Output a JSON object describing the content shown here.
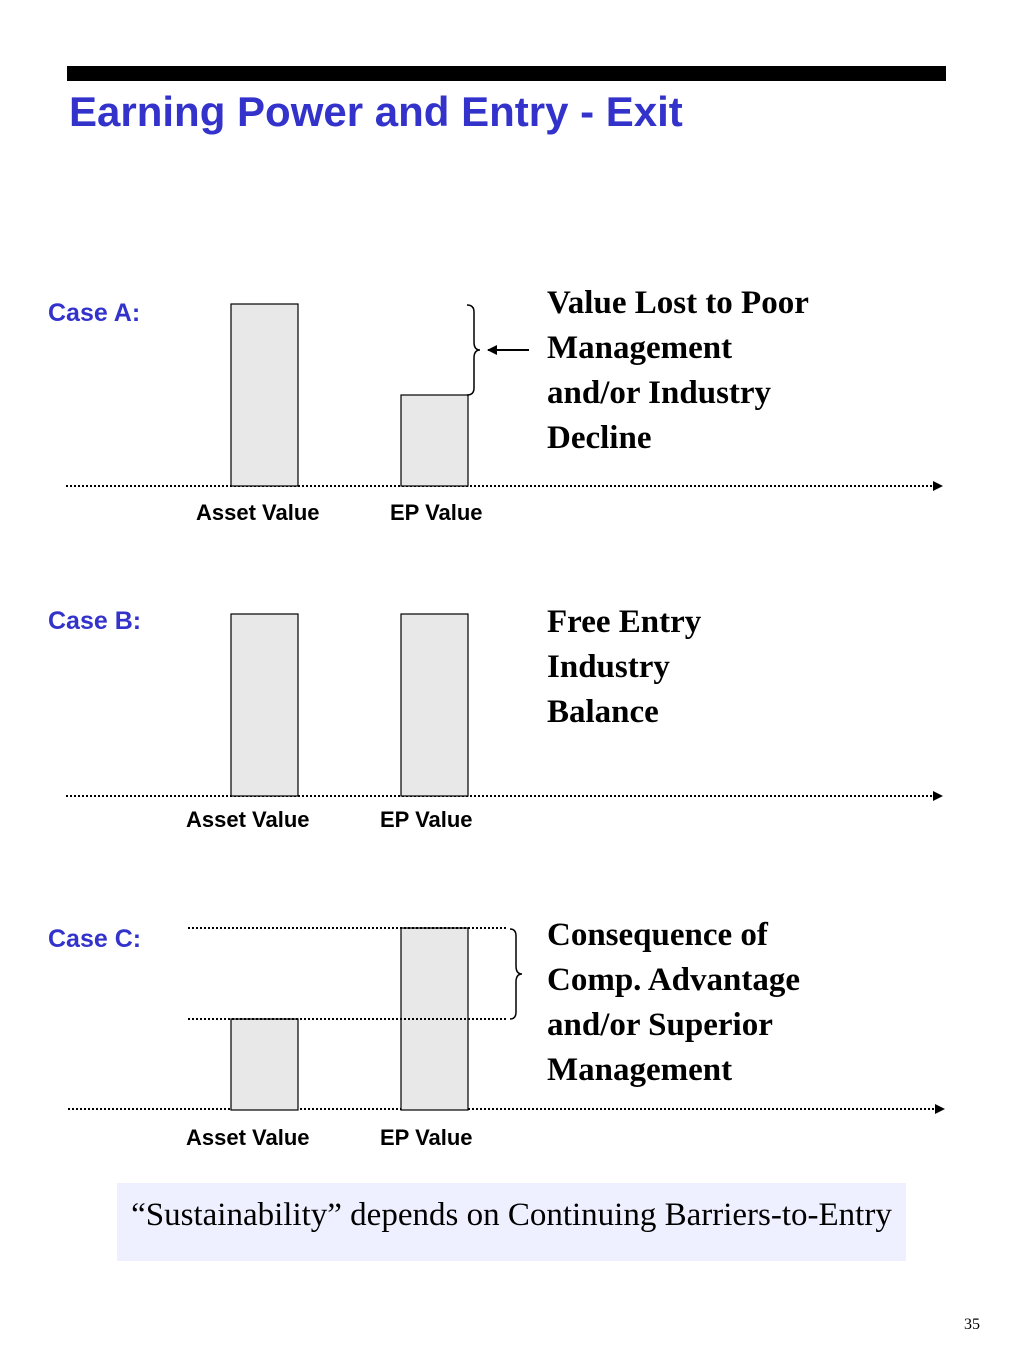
{
  "title": "Earning Power and Entry - Exit",
  "bar_labels": {
    "asset": "Asset Value",
    "ep": "EP Value"
  },
  "cases": [
    {
      "label": "Case A:",
      "asset_value_level": 1.0,
      "ep_value_level": 0.5,
      "note_lines": [
        "Value Lost to Poor",
        "Management",
        "and/or Industry",
        "Decline"
      ]
    },
    {
      "label": "Case B:",
      "asset_value_level": 1.0,
      "ep_value_level": 1.0,
      "note_lines": [
        "Free Entry",
        "Industry",
        "Balance"
      ]
    },
    {
      "label": "Case C:",
      "asset_value_level": 0.5,
      "ep_value_level": 1.0,
      "note_lines": [
        "Consequence of",
        "Comp. Advantage",
        "and/or Superior",
        "Management"
      ]
    }
  ],
  "conclusion": "“Sustainability” depends on Continuing Barriers-to-Entry",
  "page_number": "35",
  "colors": {
    "title": "#3333cc",
    "bar_fill": "#e8e8e8",
    "conclusion_bg": "#eef0ff",
    "rule": "#000000"
  }
}
